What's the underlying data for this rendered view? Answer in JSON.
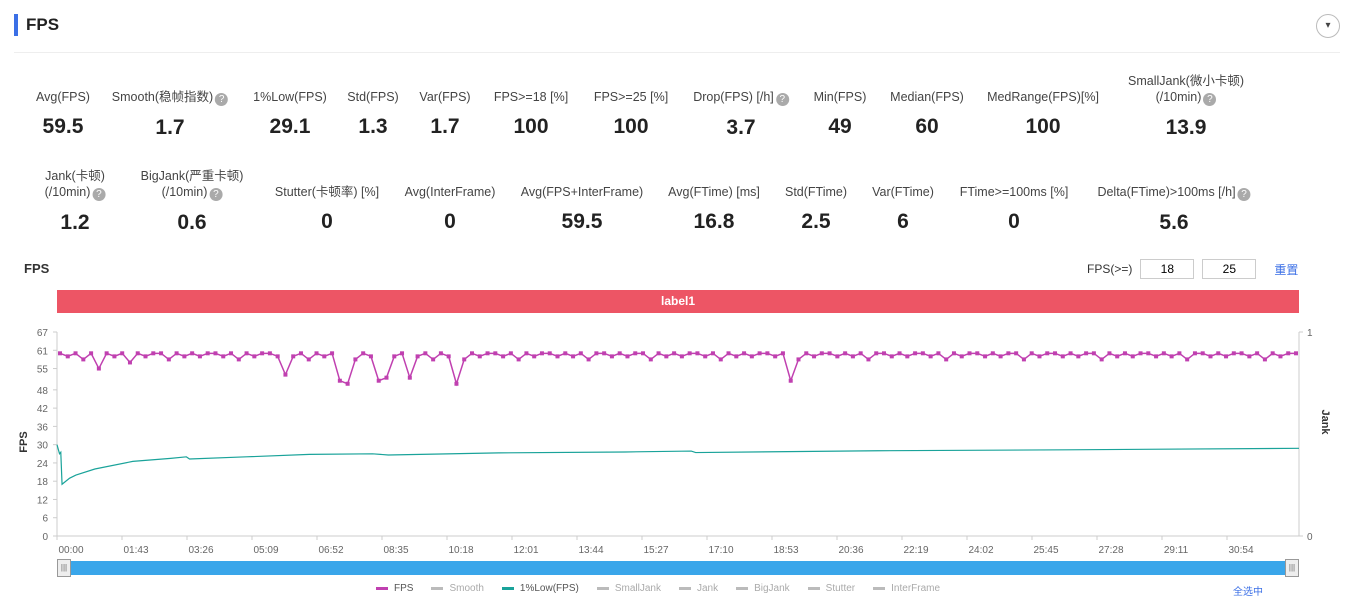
{
  "header": {
    "title": "FPS",
    "collapse_icon": "▾"
  },
  "metrics_row1": [
    {
      "label": "Avg(FPS)",
      "value": "59.5",
      "help": false
    },
    {
      "label": "Smooth(稳帧指数)",
      "value": "1.7",
      "help": true
    },
    {
      "label": "1%Low(FPS)",
      "value": "29.1",
      "help": false
    },
    {
      "label": "Std(FPS)",
      "value": "1.3",
      "help": false
    },
    {
      "label": "Var(FPS)",
      "value": "1.7",
      "help": false
    },
    {
      "label": "FPS>=18 [%]",
      "value": "100",
      "help": false
    },
    {
      "label": "FPS>=25 [%]",
      "value": "100",
      "help": false
    },
    {
      "label": "Drop(FPS) [/h]",
      "value": "3.7",
      "help": true
    },
    {
      "label": "Min(FPS)",
      "value": "49",
      "help": false
    },
    {
      "label": "Median(FPS)",
      "value": "60",
      "help": false
    },
    {
      "label": "MedRange(FPS)[%]",
      "value": "100",
      "help": false
    },
    {
      "label": "SmallJank(微小卡顿)",
      "label2": "(/10min)",
      "value": "13.9",
      "help": true
    }
  ],
  "metrics_row2": [
    {
      "label": "Jank(卡顿)",
      "label2": "(/10min)",
      "value": "1.2",
      "help": true
    },
    {
      "label": "BigJank(严重卡顿)",
      "label2": "(/10min)",
      "value": "0.6",
      "help": true
    },
    {
      "label": "Stutter(卡顿率) [%]",
      "value": "0",
      "help": false
    },
    {
      "label": "Avg(InterFrame)",
      "value": "0",
      "help": false
    },
    {
      "label": "Avg(FPS+InterFrame)",
      "value": "59.5",
      "help": false
    },
    {
      "label": "Avg(FTime) [ms]",
      "value": "16.8",
      "help": false
    },
    {
      "label": "Std(FTime)",
      "value": "2.5",
      "help": false
    },
    {
      "label": "Var(FTime)",
      "value": "6",
      "help": false
    },
    {
      "label": "FTime>=100ms [%]",
      "value": "0",
      "help": false
    },
    {
      "label": "Delta(FTime)>100ms [/h]",
      "value": "5.6",
      "help": true
    }
  ],
  "chart_header": {
    "title": "FPS",
    "threshold_label": "FPS(>=)",
    "threshold1": "18",
    "threshold2": "25",
    "reset": "重置",
    "label_bar": "label1"
  },
  "legend": {
    "items": [
      {
        "name": "FPS",
        "color": "#c040b0",
        "on": true
      },
      {
        "name": "Smooth",
        "color": "#bbb",
        "on": false
      },
      {
        "name": "1%Low(FPS)",
        "color": "#1aa39a",
        "on": true
      },
      {
        "name": "SmallJank",
        "color": "#bbb",
        "on": false
      },
      {
        "name": "Jank",
        "color": "#bbb",
        "on": false
      },
      {
        "name": "BigJank",
        "color": "#bbb",
        "on": false
      },
      {
        "name": "Stutter",
        "color": "#bbb",
        "on": false
      },
      {
        "name": "InterFrame",
        "color": "#bbb",
        "on": false
      }
    ],
    "select_all": "全选中"
  },
  "chart_data": {
    "type": "line",
    "ylabel": "FPS",
    "y2label": "Jank",
    "ylim": [
      0,
      67
    ],
    "yticks": [
      0,
      6,
      12,
      18,
      24,
      30,
      36,
      42,
      48,
      55,
      61,
      67
    ],
    "y2ticks": [
      "0",
      "1"
    ],
    "xlim_seconds": [
      0,
      1968
    ],
    "xticks": [
      "00:00",
      "01:43",
      "03:26",
      "05:09",
      "06:52",
      "08:35",
      "10:18",
      "12:01",
      "13:44",
      "15:27",
      "17:10",
      "18:53",
      "20:36",
      "22:19",
      "24:02",
      "25:45",
      "27:28",
      "29:11",
      "30:54"
    ],
    "series": [
      {
        "name": "FPS",
        "color": "#c040b0",
        "values": [
          60,
          59,
          60,
          58,
          60,
          55,
          60,
          59,
          60,
          57,
          60,
          59,
          60,
          60,
          58,
          60,
          59,
          60,
          59,
          60,
          60,
          59,
          60,
          58,
          60,
          59,
          60,
          60,
          59,
          53,
          59,
          60,
          58,
          60,
          59,
          60,
          51,
          50,
          58,
          60,
          59,
          51,
          52,
          59,
          60,
          52,
          59,
          60,
          58,
          60,
          59,
          50,
          58,
          60,
          59,
          60,
          60,
          59,
          60,
          58,
          60,
          59,
          60,
          60,
          59,
          60,
          59,
          60,
          58,
          60,
          60,
          59,
          60,
          59,
          60,
          60,
          58,
          60,
          59,
          60,
          59,
          60,
          60,
          59,
          60,
          58,
          60,
          59,
          60,
          59,
          60,
          60,
          59,
          60,
          51,
          58,
          60,
          59,
          60,
          60,
          59,
          60,
          59,
          60,
          58,
          60,
          60,
          59,
          60,
          59,
          60,
          60,
          59,
          60,
          58,
          60,
          59,
          60,
          60,
          59,
          60,
          59,
          60,
          60,
          58,
          60,
          59,
          60,
          60,
          59,
          60,
          59,
          60,
          60,
          58,
          60,
          59,
          60,
          59,
          60,
          60,
          59,
          60,
          59,
          60,
          58,
          60,
          60,
          59,
          60,
          59,
          60,
          60,
          59,
          60,
          58,
          60,
          59,
          60,
          60
        ]
      },
      {
        "name": "1%Low(FPS)",
        "color": "#1aa39a",
        "points": [
          [
            0,
            30
          ],
          [
            4,
            27
          ],
          [
            6,
            27.5
          ],
          [
            8,
            17
          ],
          [
            20,
            19
          ],
          [
            30,
            20
          ],
          [
            60,
            22
          ],
          [
            120,
            24.5
          ],
          [
            180,
            25.5
          ],
          [
            205,
            26
          ],
          [
            210,
            25.3
          ],
          [
            300,
            26
          ],
          [
            400,
            26.8
          ],
          [
            500,
            27
          ],
          [
            525,
            26.6
          ],
          [
            700,
            27.3
          ],
          [
            900,
            27.6
          ],
          [
            1005,
            27.9
          ],
          [
            1012,
            27.4
          ],
          [
            1300,
            28
          ],
          [
            1600,
            28.3
          ],
          [
            1968,
            28.8
          ]
        ]
      }
    ]
  }
}
